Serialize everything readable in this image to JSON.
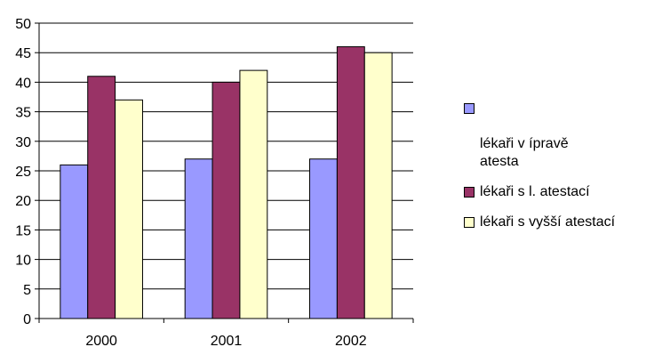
{
  "chart_data": {
    "type": "bar",
    "categories": [
      "2000",
      "2001",
      "2002"
    ],
    "series": [
      {
        "name": "lékaři v     ípravě\natesta",
        "values": [
          26,
          27,
          27
        ],
        "color": "#9999ff"
      },
      {
        "name": "lékaři s l. atestací",
        "values": [
          41,
          40,
          46
        ],
        "color": "#993366"
      },
      {
        "name": "lékaři s vyšší atestací",
        "values": [
          37,
          42,
          45
        ],
        "color": "#ffffcc"
      }
    ],
    "ylim": [
      0,
      50
    ],
    "yticks": [
      0,
      5,
      10,
      15,
      20,
      25,
      30,
      35,
      40,
      45,
      50
    ],
    "grid": true,
    "legend": "right"
  }
}
